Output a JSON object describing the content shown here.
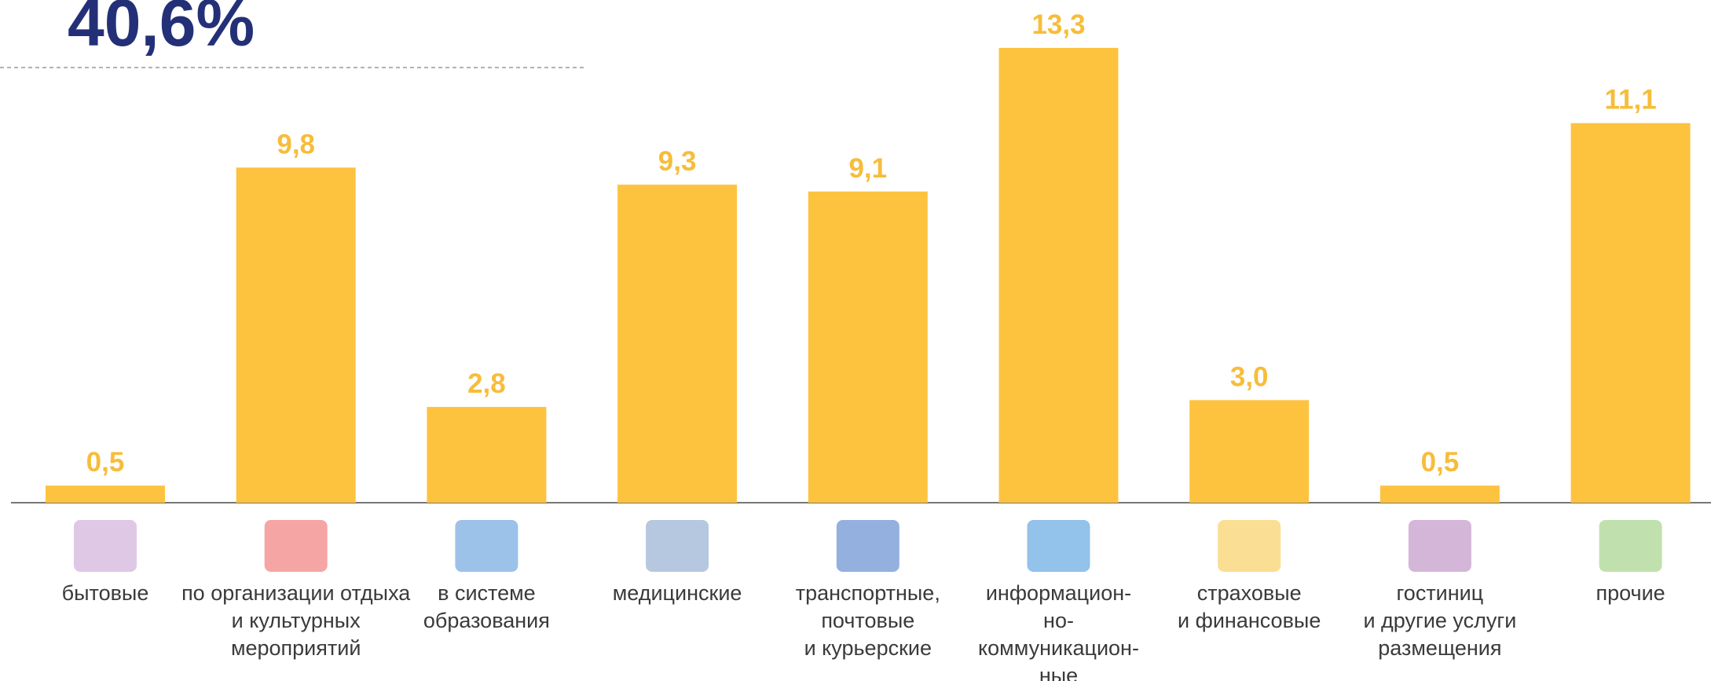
{
  "chart_data": {
    "type": "bar",
    "annotation": "40,6%",
    "categories": [
      "бытовые",
      "по организации отдыха\nи культурных\nмероприятий",
      "в системе\nобразования",
      "медицинские",
      "транспортные,\nпочтовые\nи курьерские",
      "информацион-\nно-\nкоммуникацион-\nные",
      "страховые\nи финансовые",
      "гостиниц\nи другие услуги\nразмещения",
      "прочие"
    ],
    "values": [
      0.5,
      9.8,
      2.8,
      9.3,
      9.1,
      13.3,
      3.0,
      0.5,
      11.1
    ],
    "value_labels": [
      "0,5",
      "9,8",
      "2,8",
      "9,3",
      "9,1",
      "13,3",
      "3,0",
      "0,5",
      "11,1"
    ],
    "color": "#fdc33f",
    "ylim": [
      0,
      14.7
    ]
  }
}
